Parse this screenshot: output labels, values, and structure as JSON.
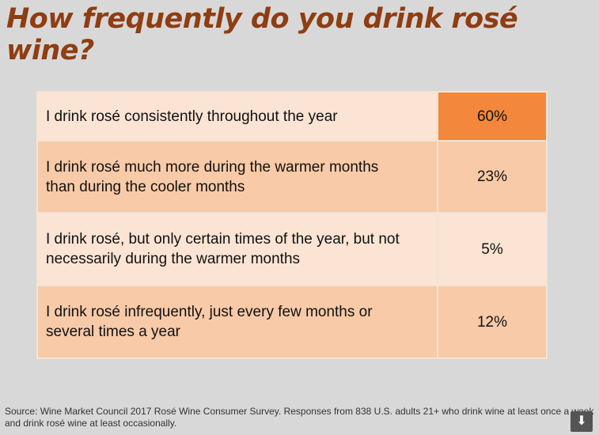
{
  "title": "How frequently do you drink rosé wine?",
  "rows": [
    {
      "label": "I drink rosé consistently throughout the year",
      "value": "60%"
    },
    {
      "label": "I drink rosé much more during the warmer months than during the cooler months",
      "value": "23%"
    },
    {
      "label": "I drink rosé, but only certain times of the year, but not necessarily during the warmer months",
      "value": "5%"
    },
    {
      "label": "I drink rosé infrequently, just every few months or several times a year",
      "value": "12%"
    }
  ],
  "source": "Source:  Wine Market Council 2017 Rosé Wine Consumer Survey. Responses from 838 U.S. adults 21+ who drink wine at least once a week and drink rosé wine at least occasionally.",
  "download_icon": "⬇"
}
